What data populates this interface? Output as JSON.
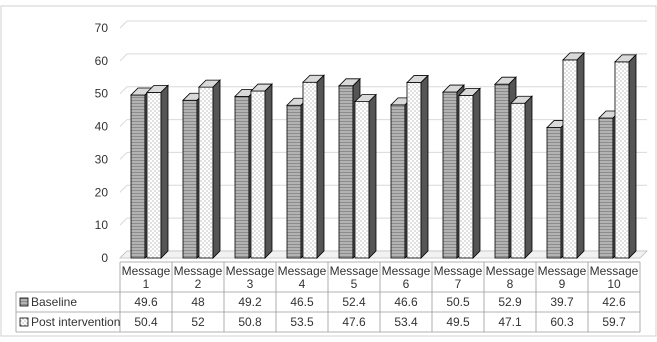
{
  "chart_data": {
    "type": "bar",
    "title": "",
    "xlabel": "",
    "ylabel": "",
    "ylim": [
      0,
      70
    ],
    "y_ticks": [
      "0",
      "10",
      "20",
      "30",
      "40",
      "50",
      "60",
      "70"
    ],
    "grid": true,
    "style": "3d-clustered-column-with-data-table",
    "categories": [
      [
        "Message",
        "1"
      ],
      [
        "Message",
        "2"
      ],
      [
        "Message",
        "3"
      ],
      [
        "Message",
        "4"
      ],
      [
        "Message",
        "5"
      ],
      [
        "Message",
        "6"
      ],
      [
        "Message",
        "7"
      ],
      [
        "Message",
        "8"
      ],
      [
        "Message",
        "9"
      ],
      [
        "Message",
        "10"
      ]
    ],
    "series": [
      {
        "name": "Baseline",
        "values": [
          49.6,
          48,
          49.2,
          46.5,
          52.4,
          46.6,
          50.5,
          52.9,
          39.7,
          42.6
        ],
        "labels": [
          "49.6",
          "48",
          "49.2",
          "46.5",
          "52.4",
          "46.6",
          "50.5",
          "52.9",
          "39.7",
          "42.6"
        ],
        "fill": "#a9a9a9",
        "pattern": "horizontal-lines"
      },
      {
        "name": "Post intervention",
        "values": [
          50.4,
          52,
          50.8,
          53.5,
          47.6,
          53.4,
          49.5,
          47.1,
          60.3,
          59.7
        ],
        "labels": [
          "50.4",
          "52",
          "50.8",
          "53.5",
          "47.6",
          "53.4",
          "49.5",
          "47.1",
          "60.3",
          "59.7"
        ],
        "fill": "#ffffff",
        "pattern": "dots"
      }
    ],
    "colors": {
      "border": "#000000",
      "grid": "#d9d9d9",
      "text": "#333333"
    }
  }
}
